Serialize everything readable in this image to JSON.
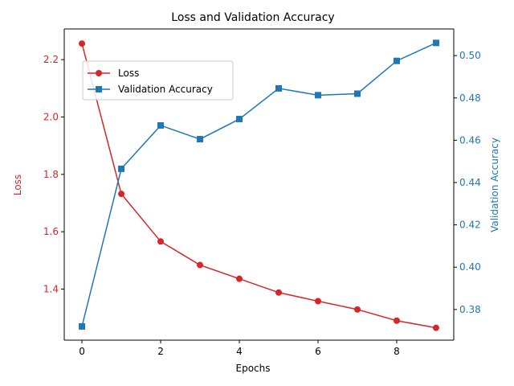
{
  "chart_data": {
    "type": "line",
    "title": "Loss and Validation Accuracy",
    "xlabel": "Epochs",
    "ylabel_left": "Loss",
    "ylabel_right": "Validation Accuracy",
    "x": [
      0,
      1,
      2,
      3,
      4,
      5,
      6,
      7,
      8,
      9
    ],
    "xlim": [
      -0.45,
      9.45
    ],
    "x_ticks": [
      0,
      2,
      4,
      6,
      8
    ],
    "x_tick_labels": [
      "0",
      "2",
      "4",
      "6",
      "8"
    ],
    "ylim_left": [
      1.222,
      2.307
    ],
    "y_ticks_left": [
      1.4,
      1.6,
      1.8,
      2.0,
      2.2
    ],
    "y_tick_labels_left": [
      "1.4",
      "1.6",
      "1.8",
      "2.0",
      "2.2"
    ],
    "ylim_right": [
      0.3655,
      0.5126
    ],
    "y_ticks_right": [
      0.38,
      0.4,
      0.42,
      0.44,
      0.46,
      0.48,
      0.5
    ],
    "y_tick_labels_right": [
      "0.38",
      "0.40",
      "0.42",
      "0.44",
      "0.46",
      "0.48",
      "0.50"
    ],
    "grid": false,
    "legend_position": "upper-left",
    "series": [
      {
        "name": "Loss",
        "axis": "left",
        "color": "#d62728",
        "marker": "circle",
        "values": [
          2.256,
          1.732,
          1.566,
          1.484,
          1.436,
          1.388,
          1.358,
          1.329,
          1.29,
          1.265
        ]
      },
      {
        "name": "Validation Accuracy",
        "axis": "right",
        "color": "#1f77b4",
        "marker": "square",
        "values": [
          0.372,
          0.4465,
          0.467,
          0.4605,
          0.47,
          0.4845,
          0.4813,
          0.482,
          0.4975,
          0.506
        ]
      }
    ]
  }
}
